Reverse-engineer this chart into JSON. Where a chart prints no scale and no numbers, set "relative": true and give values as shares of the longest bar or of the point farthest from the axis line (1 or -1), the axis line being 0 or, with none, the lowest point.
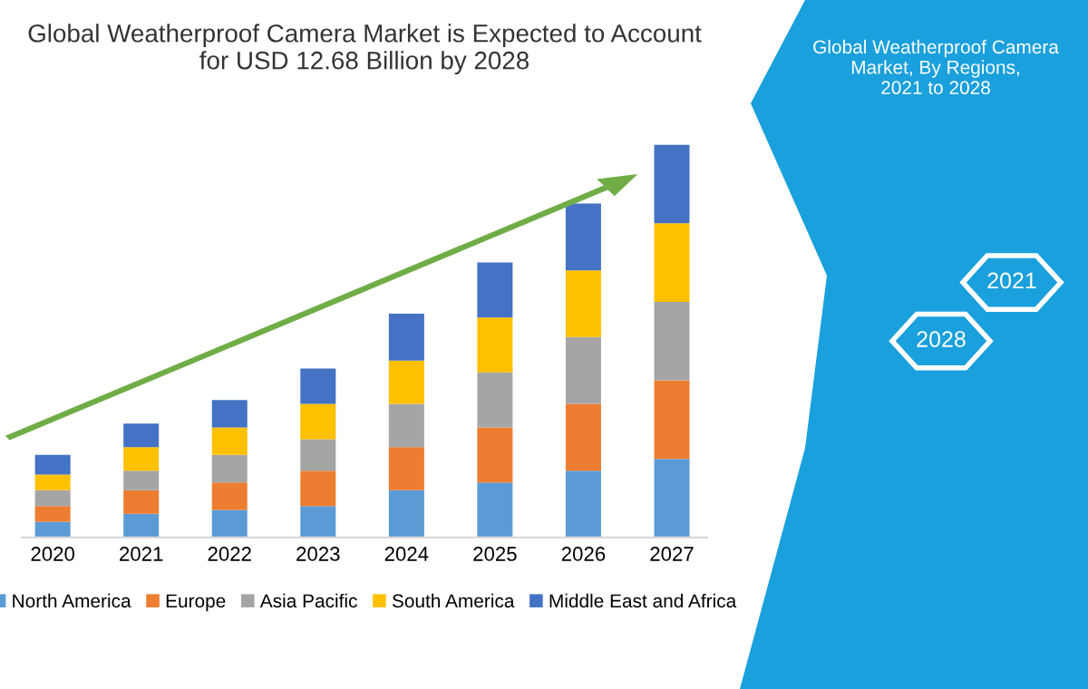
{
  "chart_data": {
    "type": "bar",
    "title": "Global Weatherproof Camera Market is Expected to Account\nfor USD 12.68 Billion by 2028",
    "categories": [
      "2020",
      "2021",
      "2022",
      "2023",
      "2024",
      "2025",
      "2026",
      "2027"
    ],
    "stacked": true,
    "relative": true,
    "legend": "bottom",
    "grid": false,
    "series": [
      {
        "name": "North America",
        "color": "#5b9bd5",
        "values": [
          0.04,
          0.06,
          0.07,
          0.08,
          0.12,
          0.14,
          0.17,
          0.2
        ]
      },
      {
        "name": "Europe",
        "color": "#ed7d31",
        "values": [
          0.04,
          0.06,
          0.07,
          0.09,
          0.11,
          0.14,
          0.17,
          0.2
        ]
      },
      {
        "name": "Asia Pacific",
        "color": "#a5a5a5",
        "values": [
          0.04,
          0.05,
          0.07,
          0.08,
          0.11,
          0.14,
          0.17,
          0.2
        ]
      },
      {
        "name": "South America",
        "color": "#ffc000",
        "values": [
          0.04,
          0.06,
          0.07,
          0.09,
          0.11,
          0.14,
          0.17,
          0.2
        ]
      },
      {
        "name": "Middle East and Africa",
        "color": "#4472c4",
        "values": [
          0.05,
          0.06,
          0.07,
          0.09,
          0.12,
          0.14,
          0.17,
          0.2
        ]
      }
    ],
    "annotations": [
      "Global Weatherproof Camera\nMarket, By Regions,\n2021 to 2028",
      "2021",
      "2028"
    ]
  }
}
